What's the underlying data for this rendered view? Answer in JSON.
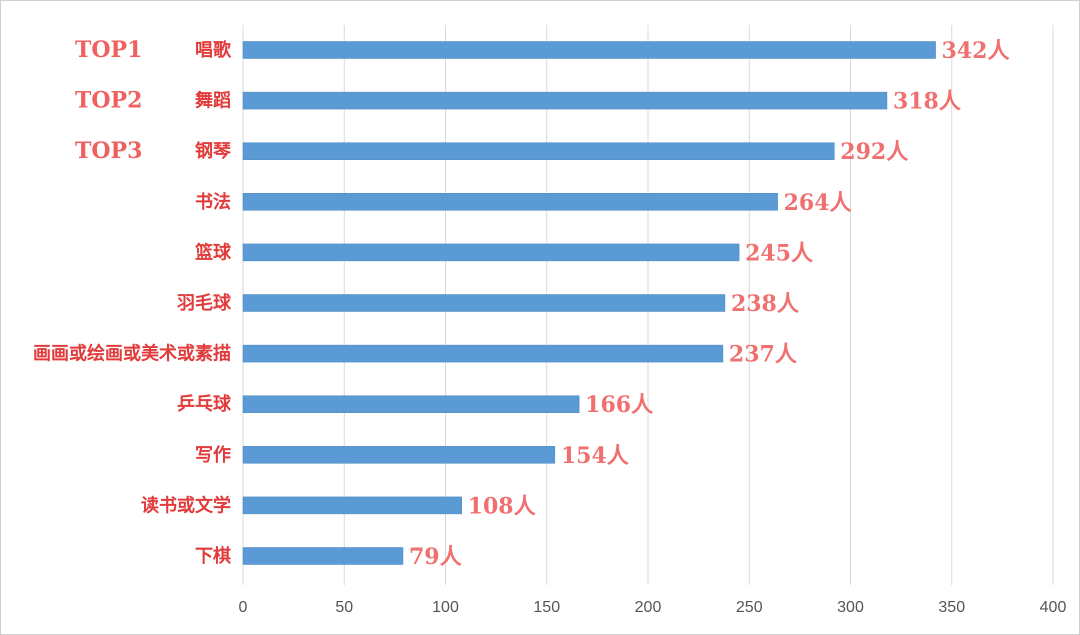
{
  "chart_data": {
    "type": "bar",
    "orientation": "horizontal",
    "categories": [
      "唱歌",
      "舞蹈",
      "钢琴",
      "书法",
      "篮球",
      "羽毛球",
      "画画或绘画或美术或素描",
      "乒乓球",
      "写作",
      "读书或文学",
      "下棋"
    ],
    "values": [
      342,
      318,
      292,
      264,
      245,
      238,
      237,
      166,
      154,
      108,
      79
    ],
    "value_labels": [
      "342人",
      "318人",
      "292人",
      "264人",
      "245人",
      "238人",
      "237人",
      "166人",
      "154人",
      "108人",
      "79人"
    ],
    "rank_labels": [
      "TOP1",
      "TOP2",
      "TOP3"
    ],
    "x_ticks": [
      "0",
      "50",
      "100",
      "150",
      "200",
      "250",
      "300",
      "350",
      "400"
    ],
    "xlim": [
      0,
      400
    ],
    "grid": "vertical",
    "legend": "none",
    "title": "",
    "xlabel": "",
    "ylabel": ""
  },
  "colors": {
    "bar": "#5b9bd5",
    "bar_border": "#4a86be",
    "label": "#e23b3b",
    "value_label": "#f07070",
    "top_label": "#f06060",
    "tick": "#555555",
    "grid": "#d9d9d9",
    "border": "#cfcfcf"
  }
}
